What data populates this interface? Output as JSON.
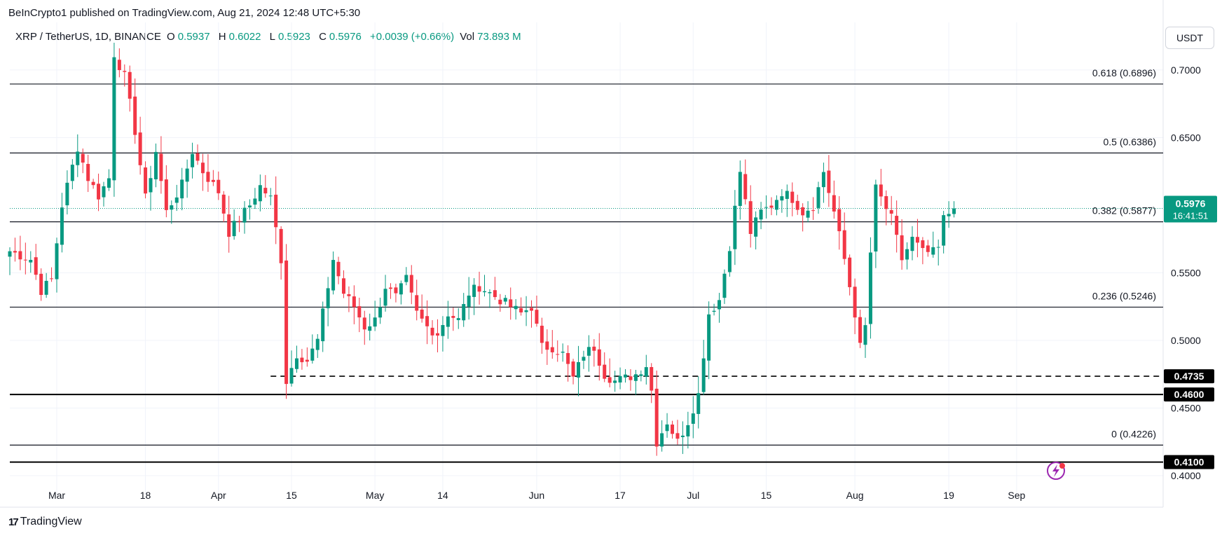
{
  "header": {
    "publisher_line": "BeInCrypto1 published on TradingView.com, Aug 21, 2024 12:48 UTC+5:30",
    "symbol": "XRP / TetherUS, 1D, BINANCE",
    "open_label": "O",
    "open": "0.5937",
    "high_label": "H",
    "high": "0.6022",
    "low_label": "L",
    "low": "0.5923",
    "close_label": "C",
    "close": "0.5976",
    "change": "+0.0039 (+0.66%)",
    "vol_label": "Vol",
    "vol": "73.893 M",
    "currency": "USDT"
  },
  "footer": {
    "brand": "TradingView"
  },
  "colors": {
    "up": "#089981",
    "down": "#f23645",
    "line": "#131722",
    "price_tag": "#089981"
  },
  "chart_data": {
    "type": "candlestick",
    "ylim": [
      0.386,
      0.731
    ],
    "y_ticks": [
      "0.7000",
      "0.6500",
      "0.5500",
      "0.5000",
      "0.4500",
      "0.4000"
    ],
    "y_tick_values": [
      0.7,
      0.65,
      0.55,
      0.5,
      0.45,
      0.4
    ],
    "x_ticks": [
      {
        "label": "Mar",
        "index": 9
      },
      {
        "label": "18",
        "index": 26
      },
      {
        "label": "Apr",
        "index": 40
      },
      {
        "label": "15",
        "index": 54
      },
      {
        "label": "May",
        "index": 70
      },
      {
        "label": "14",
        "index": 83
      },
      {
        "label": "Jun",
        "index": 101
      },
      {
        "label": "17",
        "index": 117
      },
      {
        "label": "Jul",
        "index": 131
      },
      {
        "label": "15",
        "index": 145
      },
      {
        "label": "Aug",
        "index": 162
      },
      {
        "label": "19",
        "index": 180
      },
      {
        "label": "Sep",
        "index": 193
      }
    ],
    "fib_levels": [
      {
        "label": "0.618 (0.6896)",
        "value": 0.6896
      },
      {
        "label": "0.5 (0.6386)",
        "value": 0.6386
      },
      {
        "label": "0.382 (0.5877)",
        "value": 0.5877
      },
      {
        "label": "0.236 (0.5246)",
        "value": 0.5246
      },
      {
        "label": "0 (0.4226)",
        "value": 0.4226
      }
    ],
    "support_levels": [
      {
        "label": "0.4735",
        "value": 0.4735,
        "style": "dashed",
        "start_index": 50
      },
      {
        "label": "0.4600",
        "value": 0.46,
        "style": "solid",
        "start_index": 0
      },
      {
        "label": "0.4100",
        "value": 0.41,
        "style": "solid",
        "start_index": 0
      }
    ],
    "last_price": {
      "label": "0.5976",
      "countdown": "16:41:51",
      "value": 0.5976
    },
    "anchors": [
      [
        0,
        0.566
      ],
      [
        4,
        0.56
      ],
      [
        6,
        0.537
      ],
      [
        8,
        0.545
      ],
      [
        10,
        0.6
      ],
      [
        13,
        0.643
      ],
      [
        15,
        0.62
      ],
      [
        17,
        0.607
      ],
      [
        19,
        0.62
      ],
      [
        20,
        0.712
      ],
      [
        22,
        0.695
      ],
      [
        24,
        0.655
      ],
      [
        26,
        0.605
      ],
      [
        28,
        0.64
      ],
      [
        30,
        0.595
      ],
      [
        33,
        0.615
      ],
      [
        35,
        0.64
      ],
      [
        37,
        0.625
      ],
      [
        40,
        0.61
      ],
      [
        42,
        0.58
      ],
      [
        44,
        0.59
      ],
      [
        46,
        0.6
      ],
      [
        48,
        0.614
      ],
      [
        50,
        0.605
      ],
      [
        52,
        0.56
      ],
      [
        53,
        0.47
      ],
      [
        55,
        0.49
      ],
      [
        57,
        0.485
      ],
      [
        59,
        0.5
      ],
      [
        61,
        0.54
      ],
      [
        62,
        0.56
      ],
      [
        64,
        0.535
      ],
      [
        66,
        0.525
      ],
      [
        68,
        0.51
      ],
      [
        70,
        0.515
      ],
      [
        72,
        0.54
      ],
      [
        74,
        0.532
      ],
      [
        76,
        0.545
      ],
      [
        78,
        0.52
      ],
      [
        80,
        0.51
      ],
      [
        82,
        0.505
      ],
      [
        84,
        0.52
      ],
      [
        86,
        0.515
      ],
      [
        88,
        0.535
      ],
      [
        90,
        0.54
      ],
      [
        92,
        0.535
      ],
      [
        94,
        0.53
      ],
      [
        96,
        0.525
      ],
      [
        98,
        0.52
      ],
      [
        100,
        0.525
      ],
      [
        102,
        0.495
      ],
      [
        104,
        0.495
      ],
      [
        106,
        0.49
      ],
      [
        108,
        0.472
      ],
      [
        110,
        0.49
      ],
      [
        112,
        0.495
      ],
      [
        114,
        0.475
      ],
      [
        116,
        0.47
      ],
      [
        118,
        0.472
      ],
      [
        120,
        0.475
      ],
      [
        122,
        0.482
      ],
      [
        123,
        0.463
      ],
      [
        124,
        0.425
      ],
      [
        126,
        0.44
      ],
      [
        128,
        0.425
      ],
      [
        130,
        0.44
      ],
      [
        132,
        0.46
      ],
      [
        134,
        0.52
      ],
      [
        136,
        0.53
      ],
      [
        138,
        0.57
      ],
      [
        140,
        0.625
      ],
      [
        142,
        0.58
      ],
      [
        144,
        0.595
      ],
      [
        146,
        0.6
      ],
      [
        148,
        0.61
      ],
      [
        150,
        0.605
      ],
      [
        152,
        0.595
      ],
      [
        154,
        0.6
      ],
      [
        156,
        0.625
      ],
      [
        158,
        0.595
      ],
      [
        160,
        0.56
      ],
      [
        162,
        0.52
      ],
      [
        163,
        0.495
      ],
      [
        164,
        0.51
      ],
      [
        165,
        0.565
      ],
      [
        166,
        0.612
      ],
      [
        167,
        0.605
      ],
      [
        169,
        0.59
      ],
      [
        171,
        0.56
      ],
      [
        173,
        0.575
      ],
      [
        175,
        0.565
      ],
      [
        177,
        0.565
      ],
      [
        178,
        0.568
      ],
      [
        179,
        0.59
      ],
      [
        180,
        0.594
      ],
      [
        181,
        0.5976
      ]
    ]
  }
}
